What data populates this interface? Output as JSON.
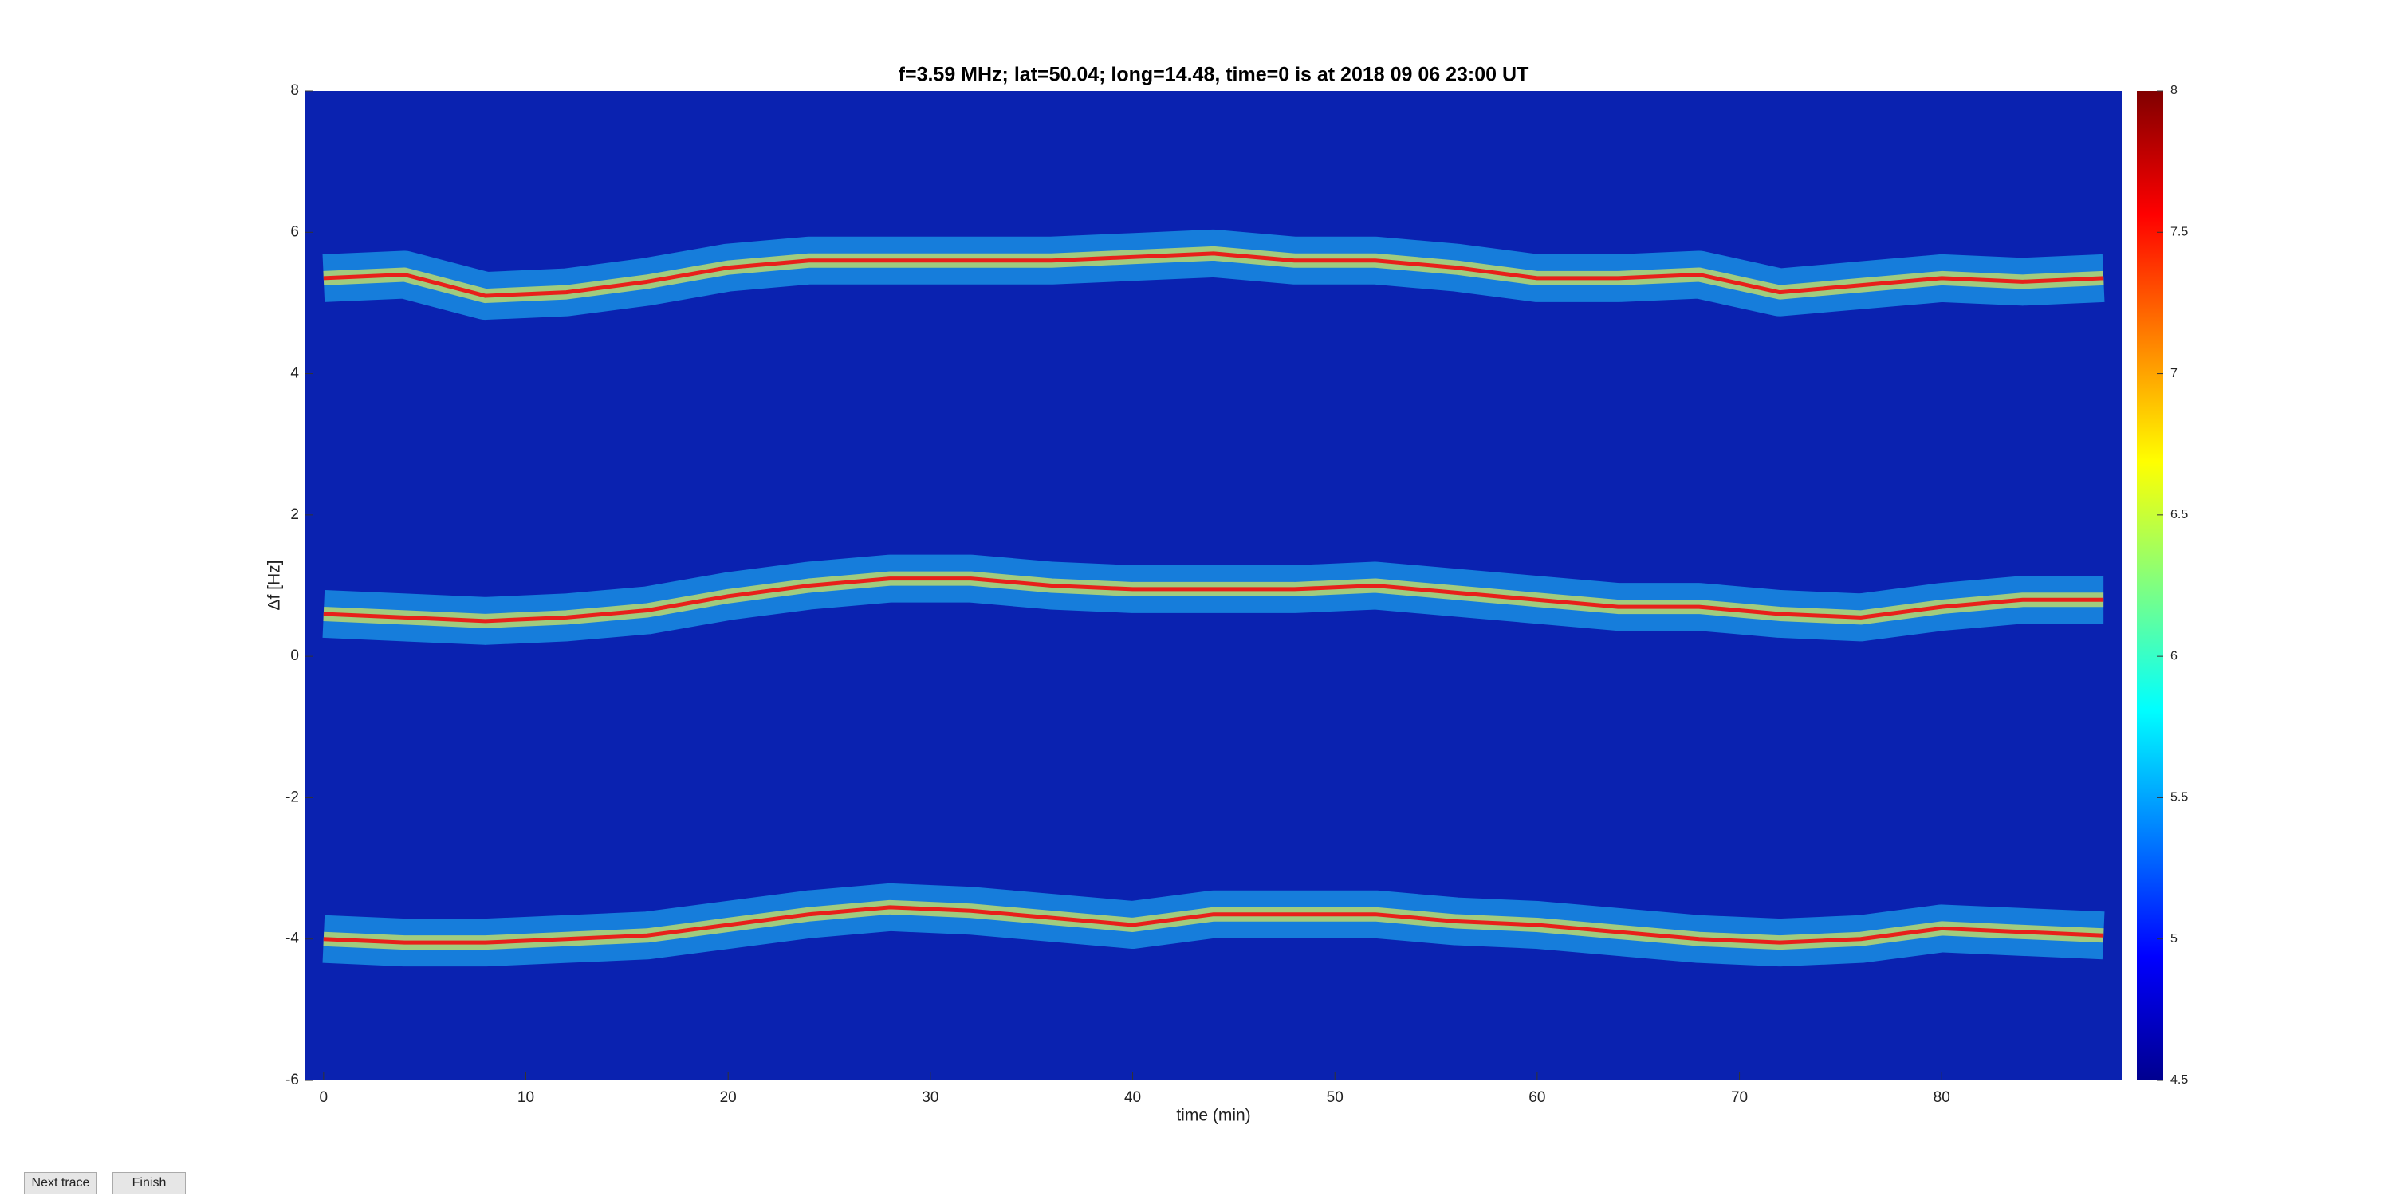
{
  "chart_data": {
    "type": "line",
    "title": "f=3.59 MHz;  lat=50.04; long=14.48, time=0 is at 2018 09 06 23:00 UT",
    "xlabel": "time (min)",
    "ylabel": "Δf [Hz]",
    "x": [
      0,
      4,
      8,
      12,
      16,
      20,
      24,
      28,
      32,
      36,
      40,
      44,
      48,
      52,
      56,
      60,
      64,
      68,
      72,
      76,
      80,
      84,
      88
    ],
    "series": [
      {
        "color": "#e8201a",
        "values": [
          5.35,
          5.4,
          5.1,
          5.15,
          5.3,
          5.5,
          5.6,
          5.6,
          5.6,
          5.6,
          5.65,
          5.7,
          5.6,
          5.6,
          5.5,
          5.35,
          5.35,
          5.4,
          5.15,
          5.25,
          5.35,
          5.3,
          5.35
        ]
      },
      {
        "color": "#e8201a",
        "values": [
          0.6,
          0.55,
          0.5,
          0.55,
          0.65,
          0.85,
          1.0,
          1.1,
          1.1,
          1.0,
          0.95,
          0.95,
          0.95,
          1.0,
          0.9,
          0.8,
          0.7,
          0.7,
          0.6,
          0.55,
          0.7,
          0.8,
          0.8
        ]
      },
      {
        "color": "#e8201a",
        "values": [
          -4.0,
          -4.05,
          -4.05,
          -4.0,
          -3.95,
          -3.8,
          -3.65,
          -3.55,
          -3.6,
          -3.7,
          -3.8,
          -3.65,
          -3.65,
          -3.65,
          -3.75,
          -3.8,
          -3.9,
          -4.0,
          -4.05,
          -4.0,
          -3.85,
          -3.9,
          -3.95
        ]
      }
    ],
    "xlim": [
      -0.9,
      88.9
    ],
    "xticks": [
      0,
      10,
      20,
      30,
      40,
      50,
      60,
      70,
      80
    ],
    "ylim": [
      -6,
      8
    ],
    "yticks": [
      -6,
      -4,
      -2,
      0,
      2,
      4,
      6,
      8
    ],
    "colorbar": {
      "lim": [
        4.5,
        8
      ],
      "ticks": [
        4.5,
        5,
        5.5,
        6,
        6.5,
        7,
        7.5,
        8
      ],
      "colormap": [
        "#00008f",
        "#0000ff",
        "#0080ff",
        "#00ffff",
        "#80ff80",
        "#ffff00",
        "#ff8000",
        "#ff0000",
        "#800000"
      ]
    }
  },
  "buttons": [
    "Next trace",
    "Finish"
  ]
}
